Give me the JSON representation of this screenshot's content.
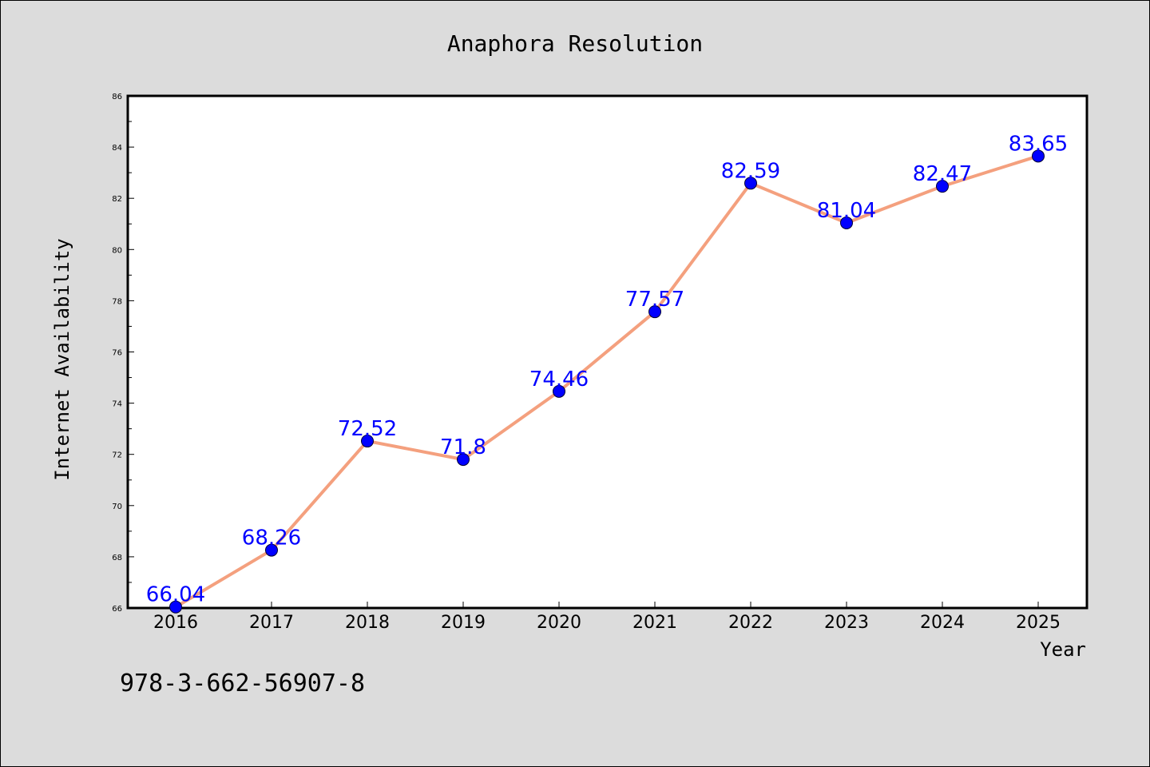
{
  "colors": {
    "background": "#dcdcdc",
    "plot_background": "#ffffff",
    "line": "#f4a07e",
    "marker": "#0000ff",
    "data_label": "#0000ff"
  },
  "footnote": "978-3-662-56907-8",
  "chart_data": {
    "type": "line",
    "title": "Anaphora Resolution",
    "xlabel": "Year",
    "ylabel": "Internet Availability",
    "categories": [
      "2016",
      "2017",
      "2018",
      "2019",
      "2020",
      "2021",
      "2022",
      "2023",
      "2024",
      "2025"
    ],
    "series": [
      {
        "values": [
          66.04,
          68.26,
          72.52,
          71.8,
          74.46,
          77.57,
          82.59,
          81.04,
          82.47,
          83.65
        ],
        "labels": [
          "66.04",
          "68.26",
          "72.52",
          "71.8",
          "74.46",
          "77.57",
          "82.59",
          "81.04",
          "82.47",
          "83.65"
        ]
      }
    ],
    "ylim": [
      66,
      86
    ],
    "yticks": [
      "66",
      "68",
      "70",
      "72",
      "74",
      "76",
      "78",
      "80",
      "82",
      "84",
      "86"
    ],
    "grid": false,
    "legend": "none"
  }
}
